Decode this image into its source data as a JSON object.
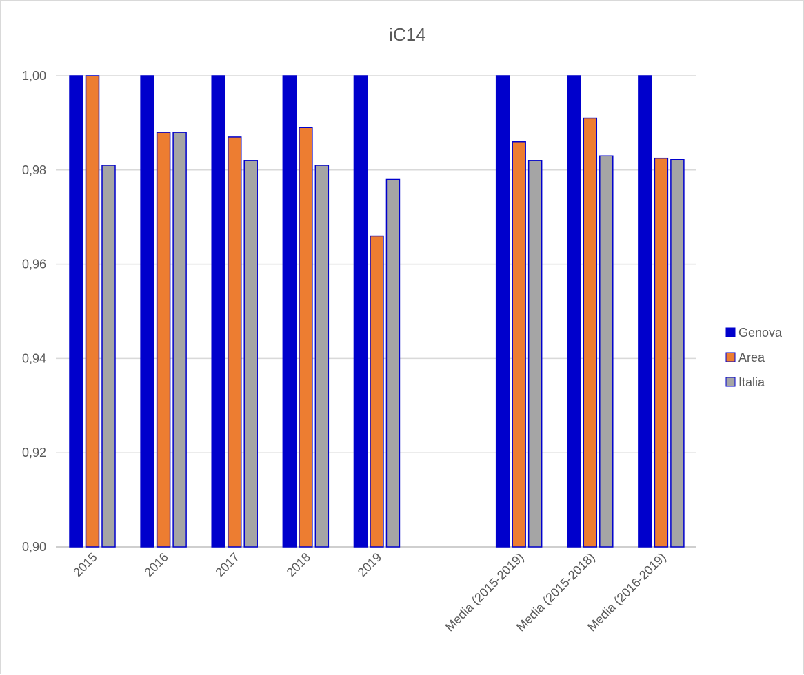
{
  "chart_data": {
    "type": "bar",
    "title": "iC14",
    "xlabel": "",
    "ylabel": "",
    "ylim": [
      0.9,
      1.0
    ],
    "y_ticks": [
      "0,90",
      "0,92",
      "0,94",
      "0,96",
      "0,98",
      "1,00"
    ],
    "categories": [
      "2015",
      "2016",
      "2017",
      "2018",
      "2019",
      "",
      "Media (2015-2019)",
      "Media (2015-2018)",
      "Media (2016-2019)"
    ],
    "series": [
      {
        "name": "Genova",
        "color": "#0000cc",
        "values": [
          1.0,
          1.0,
          1.0,
          1.0,
          1.0,
          null,
          1.0,
          1.0,
          1.0
        ]
      },
      {
        "name": "Area",
        "color": "#ed7d31",
        "values": [
          1.0,
          0.988,
          0.987,
          0.989,
          0.966,
          null,
          0.986,
          0.991,
          0.9825
        ]
      },
      {
        "name": "Italia",
        "color": "#a5a5a5",
        "values": [
          0.981,
          0.988,
          0.982,
          0.981,
          0.978,
          null,
          0.982,
          0.983,
          0.9822
        ]
      }
    ],
    "grid": true,
    "legend_position": "right"
  }
}
